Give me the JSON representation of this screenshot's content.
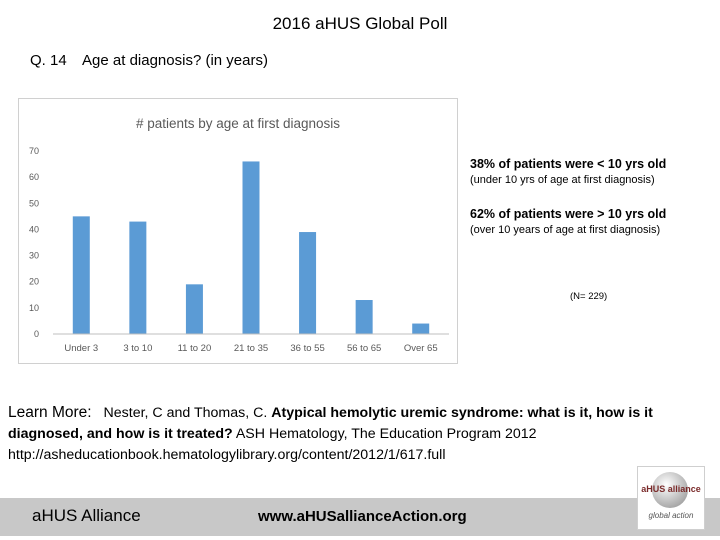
{
  "slide": {
    "title": "2016 aHUS Global Poll",
    "question_number": "Q. 14",
    "question_text": "Age at diagnosis? (in years)"
  },
  "stats": {
    "line1_head": "38% of patients were < 10 yrs old",
    "line1_sub": "(under 10 yrs  of age at first diagnosis)",
    "line2_head": "62% of patients were > 10 yrs old",
    "line2_sub": "(over 10 years of age at first diagnosis)",
    "n_note": "(N= 229)"
  },
  "learn_more": {
    "label": "Learn More:",
    "authors": "Nester, C and Thomas, C.",
    "article_title": "Atypical hemolytic uremic syndrome: what is it, how is it diagnosed, and how is it treated?",
    "source": "ASH Hematology, The Education Program 2012",
    "url": "http://asheducationbook.hematologylibrary.org/content/2012/1/617.full"
  },
  "footer": {
    "org": "aHUS Alliance",
    "url": "www.aHUSallianceAction.org"
  },
  "logo": {
    "text": "aHUS alliance",
    "sub": "global action"
  },
  "colors": {
    "bar": "#5b9bd5",
    "grid": "#d9d9d9",
    "axis_text": "#595959"
  },
  "chart_data": {
    "type": "bar",
    "title": "# patients by age at first diagnosis",
    "categories": [
      "Under 3",
      "3 to 10",
      "11 to 20",
      "21 to 35",
      "36 to 55",
      "56 to 65",
      "Over 65"
    ],
    "values": [
      45,
      43,
      19,
      66,
      39,
      13,
      4
    ],
    "ylim": [
      0,
      70
    ],
    "yticks": [
      0,
      10,
      20,
      30,
      40,
      50,
      60,
      70
    ],
    "grid": false,
    "legend": "none"
  }
}
